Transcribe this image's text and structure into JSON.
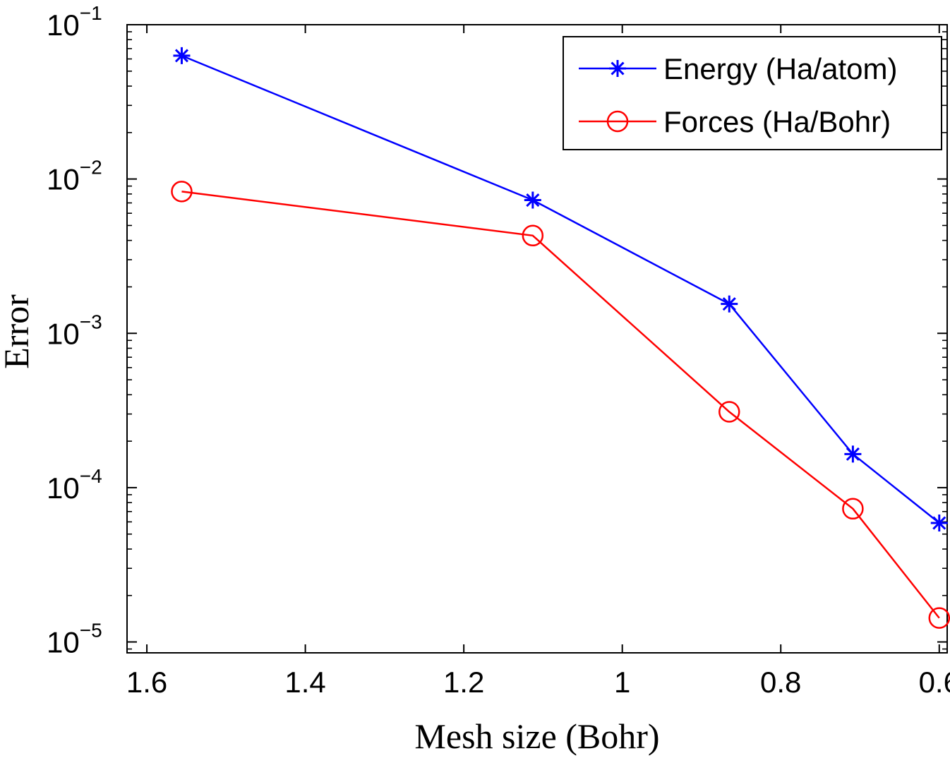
{
  "chart_data": {
    "type": "line",
    "xlabel": "Mesh size (Bohr)",
    "ylabel": "Error",
    "x_reversed": true,
    "xlim": [
      0.59,
      1.625
    ],
    "ylim": [
      8.5e-06,
      0.1
    ],
    "yscale": "log",
    "x_ticks": [
      {
        "value": 1.6,
        "label": "1.6"
      },
      {
        "value": 1.4,
        "label": "1.4"
      },
      {
        "value": 1.2,
        "label": "1.2"
      },
      {
        "value": 1.0,
        "label": "1"
      },
      {
        "value": 0.8,
        "label": "0.8"
      },
      {
        "value": 0.6,
        "label": "0.6"
      }
    ],
    "y_ticks": [
      {
        "value": 0.1,
        "base": "10",
        "exp": "−1"
      },
      {
        "value": 0.01,
        "base": "10",
        "exp": "−2"
      },
      {
        "value": 0.001,
        "base": "10",
        "exp": "−3"
      },
      {
        "value": 0.0001,
        "base": "10",
        "exp": "−4"
      },
      {
        "value": 1e-05,
        "base": "10",
        "exp": "−5"
      }
    ],
    "grid": false,
    "legend_position": "top-right",
    "series": [
      {
        "name": "Energy (Ha/atom)",
        "color": "#0000ff",
        "marker": "asterisk",
        "x": [
          1.556,
          1.113,
          0.865,
          0.709,
          0.6
        ],
        "y": [
          0.063,
          0.0073,
          0.00155,
          0.000165,
          5.9e-05
        ]
      },
      {
        "name": "Forces (Ha/Bohr)",
        "color": "#ff0000",
        "marker": "circle",
        "x": [
          1.556,
          1.113,
          0.865,
          0.709,
          0.6
        ],
        "y": [
          0.0083,
          0.0043,
          0.00031,
          7.3e-05,
          1.43e-05
        ]
      }
    ]
  }
}
